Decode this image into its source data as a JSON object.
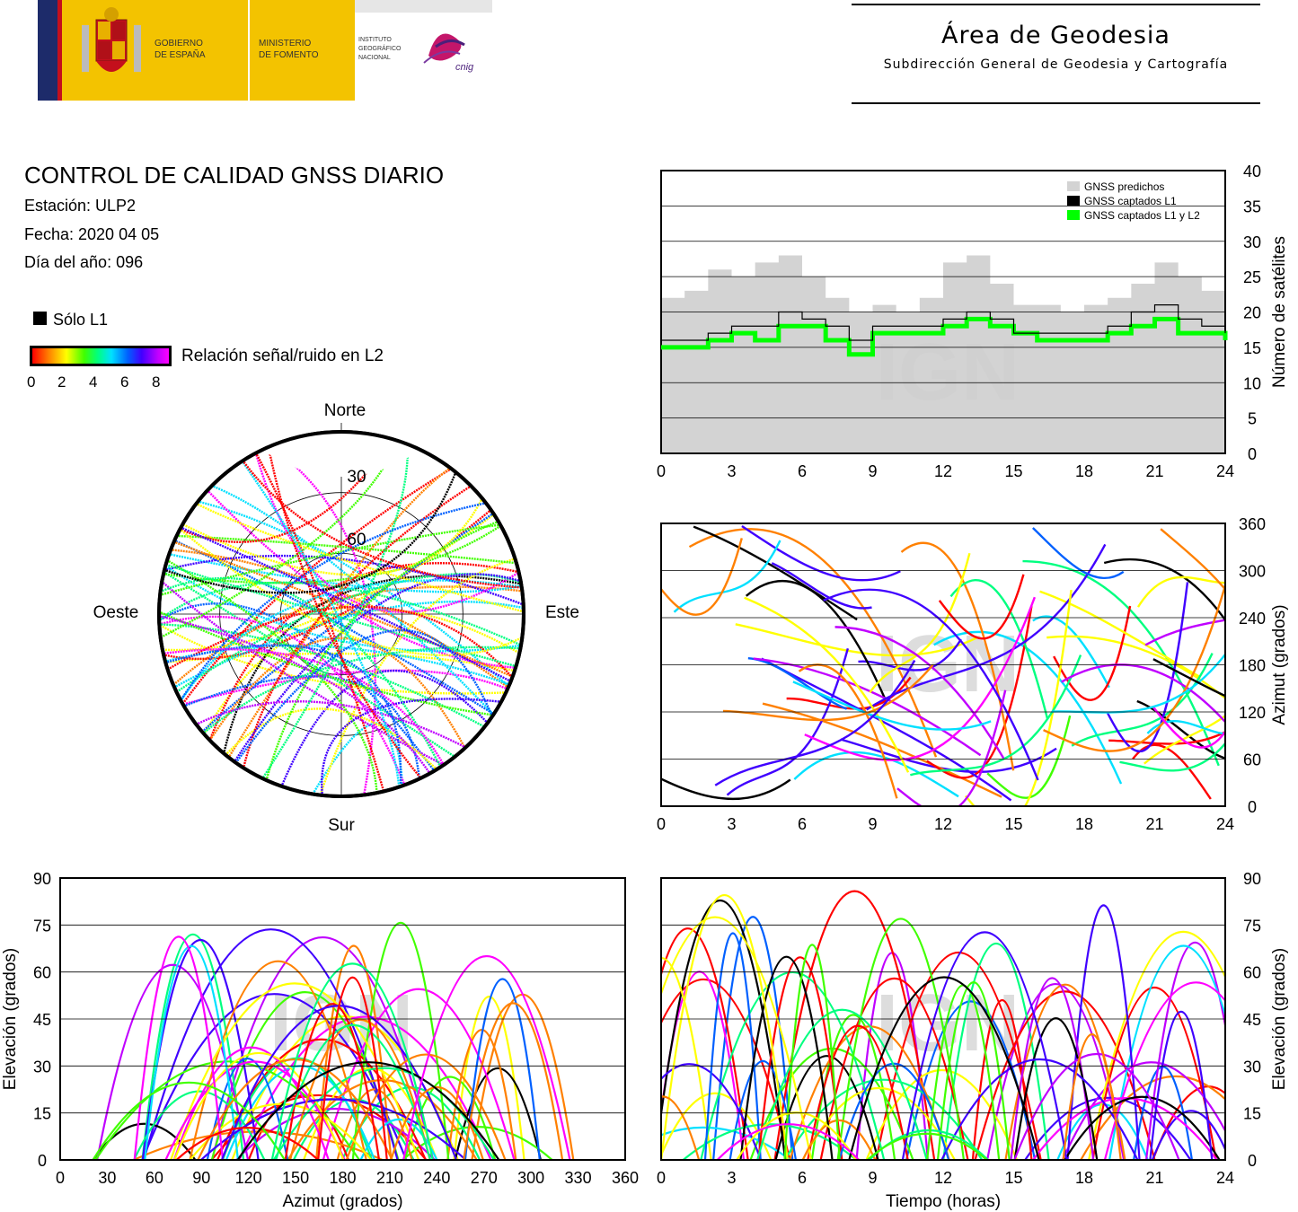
{
  "header": {
    "gobierno_label_1": "GOBIERNO",
    "gobierno_label_2": "DE ESPAÑA",
    "ministerio_label_1": "MINISTERIO",
    "ministerio_label_2": "DE FOMENTO",
    "ign_label_1": "INSTITUTO",
    "ign_label_2": "GEOGRÁFICO",
    "ign_label_3": "NACIONAL",
    "cnig_label": "cnig",
    "area_title": "Área de Geodesia",
    "area_subtitle": "Subdirección General de Geodesia y Cartografía"
  },
  "report": {
    "title": "CONTROL DE CALIDAD GNSS DIARIO",
    "station": "Estación: ULP2",
    "date": "Fecha: 2020 04 05",
    "day_of_year": "Día del año: 096"
  },
  "legend": {
    "l1_only": "Sólo L1",
    "snr_label": "Relación señal/ruido en L2",
    "snr_ticks": [
      "0",
      "2",
      "4",
      "6",
      "8"
    ]
  },
  "watermark": "IGN",
  "colors": {
    "predicted": "#d3d3d3",
    "l1": "#000000",
    "l1l2": "#00ff00",
    "snr_scale": [
      "#ff0000",
      "#ff8000",
      "#ffff00",
      "#40ff00",
      "#00ff80",
      "#00e0ff",
      "#0060ff",
      "#4000ff",
      "#c000ff",
      "#ff00ff"
    ]
  },
  "chart_data": [
    {
      "id": "sats",
      "type": "area",
      "x_ticks": [
        "0",
        "3",
        "6",
        "9",
        "12",
        "15",
        "18",
        "21",
        "24"
      ],
      "y_ticks": [
        "0",
        "5",
        "10",
        "15",
        "20",
        "25",
        "30",
        "35",
        "40"
      ],
      "xlim": [
        0,
        24
      ],
      "ylim": [
        0,
        40
      ],
      "y_axis_side": "right",
      "ylabel": "Número de satélites",
      "grid": "horizontal",
      "legend_position": "top-right",
      "x": [
        0,
        1,
        2,
        3,
        4,
        5,
        6,
        7,
        8,
        9,
        10,
        11,
        12,
        13,
        14,
        15,
        16,
        17,
        18,
        19,
        20,
        21,
        22,
        23,
        24
      ],
      "series": [
        {
          "name": "GNSS predichos",
          "values": [
            22,
            23,
            26,
            25,
            27,
            28,
            25,
            22,
            20,
            21,
            20,
            22,
            27,
            28,
            24,
            21,
            21,
            20,
            21,
            22,
            24,
            27,
            25,
            23,
            22
          ]
        },
        {
          "name": "GNSS captados L1",
          "values": [
            16,
            16,
            17,
            18,
            18,
            20,
            19,
            18,
            16,
            18,
            18,
            18,
            19,
            20,
            19,
            17,
            17,
            17,
            17,
            18,
            20,
            21,
            19,
            18,
            17
          ]
        },
        {
          "name": "GNSS captados L1 y L2",
          "values": [
            15,
            15,
            16,
            17,
            16,
            18,
            18,
            16,
            14,
            17,
            17,
            17,
            18,
            19,
            18,
            17,
            16,
            16,
            16,
            17,
            18,
            19,
            17,
            17,
            16
          ]
        }
      ]
    },
    {
      "id": "skyplot",
      "type": "scatter",
      "labels": {
        "north": "Norte",
        "south": "Sur",
        "east": "Este",
        "west": "Oeste"
      },
      "rings": [
        "30",
        "60"
      ]
    },
    {
      "id": "azimut_time",
      "type": "scatter",
      "x_ticks": [
        "0",
        "3",
        "6",
        "9",
        "12",
        "15",
        "18",
        "21",
        "24"
      ],
      "y_ticks": [
        "0",
        "60",
        "120",
        "180",
        "240",
        "300",
        "360"
      ],
      "xlim": [
        0,
        24
      ],
      "ylim": [
        0,
        360
      ],
      "y_axis_side": "right",
      "ylabel": "Azimut (grados)",
      "grid": "horizontal"
    },
    {
      "id": "elev_azimut",
      "type": "scatter",
      "x_ticks": [
        "0",
        "30",
        "60",
        "90",
        "120",
        "150",
        "180",
        "210",
        "240",
        "270",
        "300",
        "330",
        "360"
      ],
      "y_ticks": [
        "0",
        "15",
        "30",
        "45",
        "60",
        "75",
        "90"
      ],
      "xlim": [
        0,
        360
      ],
      "ylim": [
        0,
        90
      ],
      "xlabel": "Azimut (grados)",
      "ylabel": "Elevación (grados)",
      "grid": "horizontal"
    },
    {
      "id": "elev_time",
      "type": "line",
      "x_ticks": [
        "0",
        "3",
        "6",
        "9",
        "12",
        "15",
        "18",
        "21",
        "24"
      ],
      "y_ticks": [
        "0",
        "15",
        "30",
        "45",
        "60",
        "75",
        "90"
      ],
      "xlim": [
        0,
        24
      ],
      "ylim": [
        0,
        90
      ],
      "xlabel": "Tiempo (horas)",
      "ylabel": "Elevación (grados)",
      "y_axis_side": "right",
      "grid": "horizontal"
    }
  ]
}
